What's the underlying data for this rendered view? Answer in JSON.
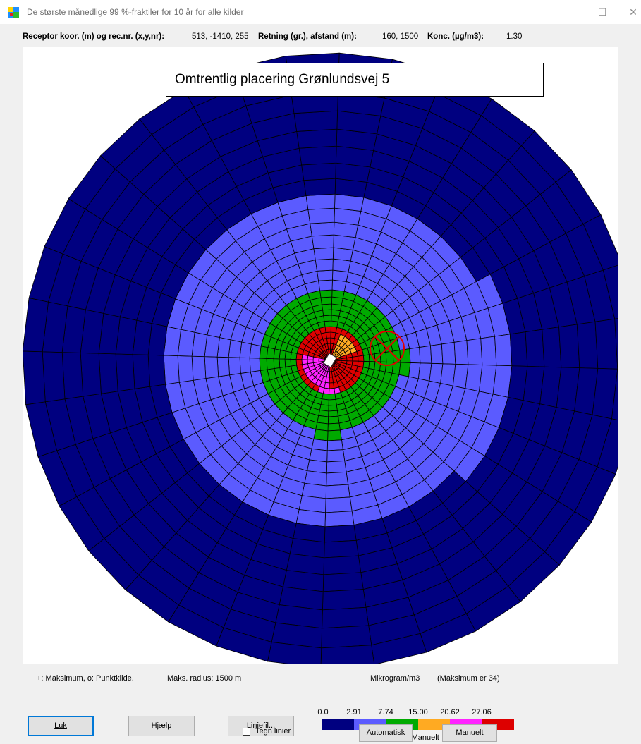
{
  "window": {
    "title": "De største månedlige 99 %-fraktiler for 10 år for alle kilder",
    "controls": [
      "—",
      "☐",
      "✕"
    ]
  },
  "info": {
    "receptor_label": "Receptor koor. (m) og rec.nr. (x,y,nr):",
    "receptor_value": "513, -1410, 255",
    "direction_label": "Retning (gr.), afstand (m):",
    "direction_value": "160, 1500",
    "conc_label": "Konc. (µg/m3):",
    "conc_value": "1.30"
  },
  "plot": {
    "annotation": "Omtrentlig placering Grønlundsvej 5",
    "colors": {
      "level0": "#000080",
      "level1": "#5b5bff",
      "level2": "#00aa00",
      "level3": "#ffaa22",
      "level4": "#ff22ff",
      "level5": "#dd0000"
    }
  },
  "footer": {
    "markers_text": "+: Maksimum, o: Punktkilde.",
    "radius_text": "Maks. radius: 1500 m",
    "unit_text": "Mikrogram/m3",
    "max_text": "(Maksimum er  34)",
    "scale_text": "Skala:  Manuelt",
    "checkbox_label": "Tegn linier"
  },
  "legend": {
    "labels": [
      "0.0",
      "2.91",
      "7.74",
      "15.00",
      "20.62",
      "27.06"
    ],
    "colors": [
      "#000080",
      "#5b5bff",
      "#00aa00",
      "#ffaa22",
      "#ff22ff",
      "#dd0000"
    ]
  },
  "buttons": {
    "close": "Luk",
    "help": "Hjælp",
    "linefile": "Liniefil...",
    "automatic": "Automatisk",
    "manual": "Manuelt"
  }
}
